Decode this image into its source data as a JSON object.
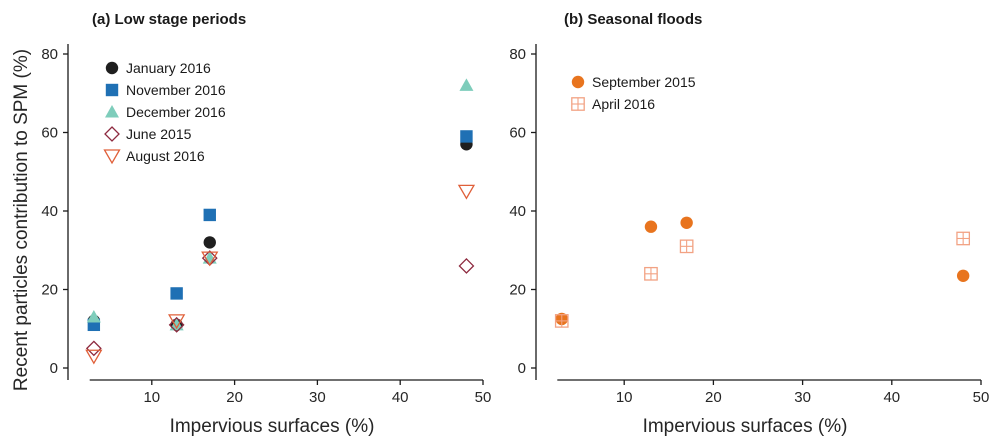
{
  "chart_data": [
    {
      "type": "scatter",
      "title": "(a) Low stage periods",
      "xlabel": "Impervious surfaces (%)",
      "ylabel": "Recent particles contribution to SPM (%)",
      "xlim": [
        0,
        50
      ],
      "ylim": [
        0,
        80
      ],
      "xticks": [
        10,
        20,
        30,
        40,
        50
      ],
      "yticks": [
        0,
        20,
        40,
        60,
        80
      ],
      "grid": false,
      "legend_position": "top-left",
      "series": [
        {
          "name": "January 2016",
          "marker": "filled-circle",
          "color": "#1f1f1f",
          "x": [
            3,
            13,
            17,
            48
          ],
          "y": [
            12,
            11,
            32,
            57
          ]
        },
        {
          "name": "November 2016",
          "marker": "filled-square",
          "color": "#1f70b4",
          "x": [
            3,
            13,
            17,
            48
          ],
          "y": [
            11,
            19,
            39,
            59
          ]
        },
        {
          "name": "December 2016",
          "marker": "filled-triangle-up",
          "color": "#7ecdbb",
          "x": [
            3,
            13,
            17,
            48
          ],
          "y": [
            13,
            11,
            28,
            72
          ]
        },
        {
          "name": "June 2015",
          "marker": "open-diamond",
          "color": "#8e2a3f",
          "x": [
            3,
            13,
            17,
            48
          ],
          "y": [
            5,
            11,
            28,
            26
          ]
        },
        {
          "name": "August 2016",
          "marker": "open-triangle-down",
          "color": "#e0603a",
          "x": [
            3,
            13,
            17,
            48
          ],
          "y": [
            3,
            12,
            28,
            45
          ]
        }
      ]
    },
    {
      "type": "scatter",
      "title": "(b) Seasonal floods",
      "xlabel": "Impervious surfaces (%)",
      "ylabel": "",
      "xlim": [
        0,
        50
      ],
      "ylim": [
        0,
        80
      ],
      "xticks": [
        10,
        20,
        30,
        40,
        50
      ],
      "yticks": [
        0,
        20,
        40,
        60,
        80
      ],
      "grid": false,
      "legend_position": "top-left",
      "series": [
        {
          "name": "September 2015",
          "marker": "filled-circle",
          "color": "#e8741e",
          "x": [
            3,
            13,
            17,
            48
          ],
          "y": [
            12.5,
            36,
            37,
            23.5
          ]
        },
        {
          "name": "April 2016",
          "marker": "open-square-plus",
          "color": "#f2a283",
          "x": [
            3,
            13,
            17,
            48
          ],
          "y": [
            12,
            24,
            31,
            33
          ]
        }
      ]
    }
  ]
}
